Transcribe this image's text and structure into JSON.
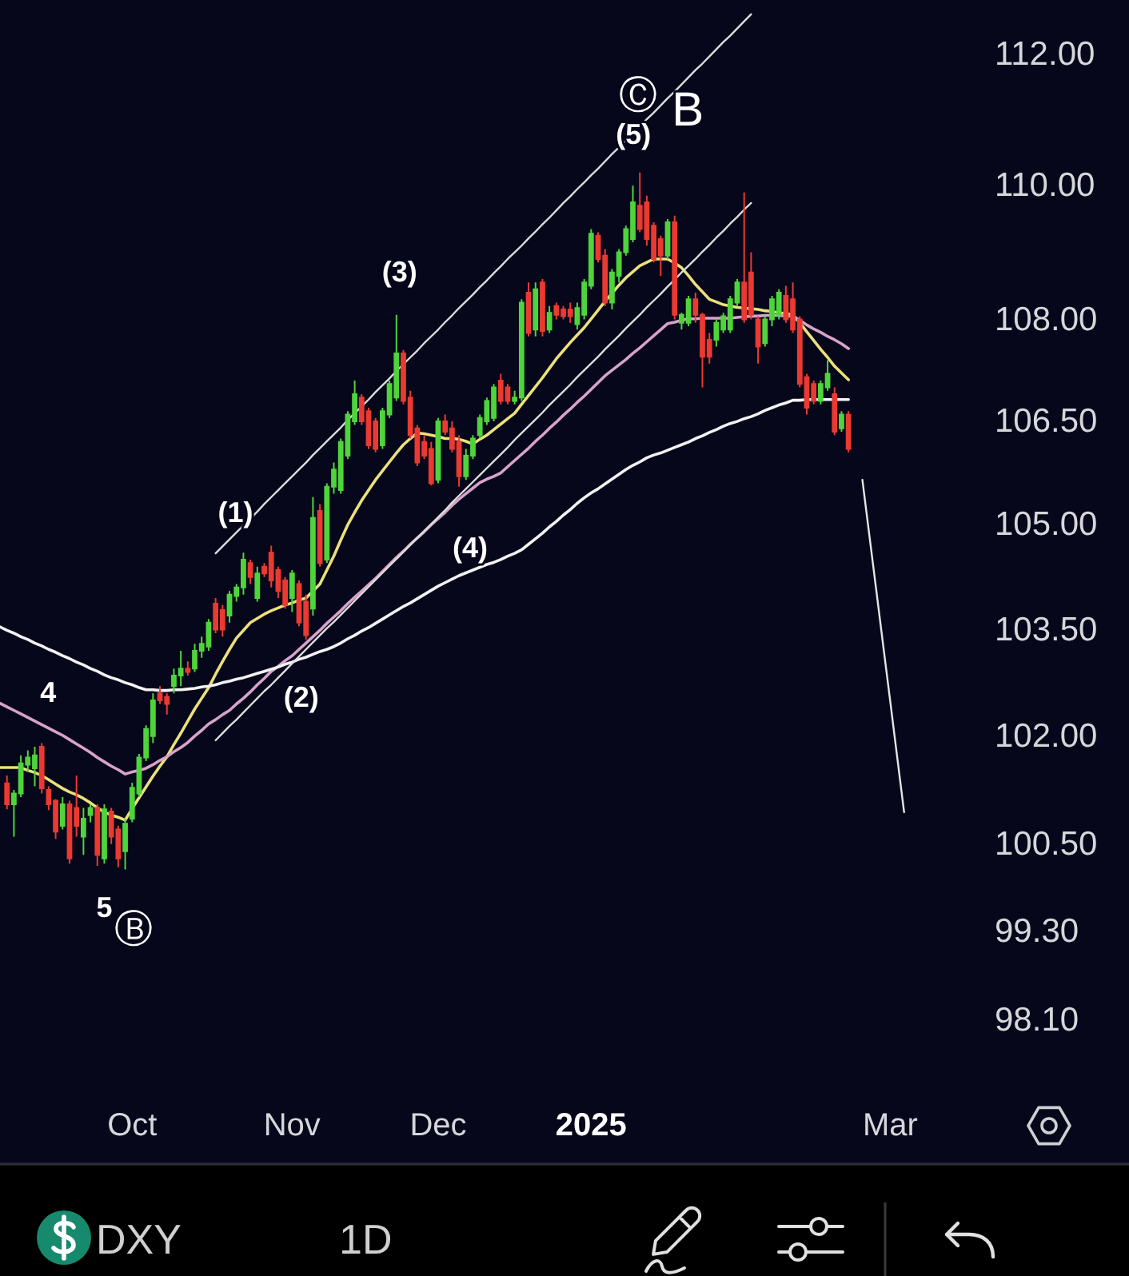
{
  "chart_data": {
    "type": "candlestick",
    "title": "DXY",
    "subtitle": "1D",
    "log": "y",
    "categories": [
      null,
      null,
      null,
      null,
      null,
      null,
      null,
      null,
      null,
      null,
      null,
      null,
      null,
      null,
      null,
      null,
      null,
      null,
      null,
      "Oct",
      null,
      null,
      null,
      null,
      null,
      null,
      null,
      null,
      null,
      null,
      null,
      null,
      null,
      null,
      null,
      null,
      null,
      null,
      null,
      null,
      null,
      null,
      "Nov",
      null,
      null,
      null,
      null,
      null,
      null,
      null,
      null,
      null,
      null,
      null,
      null,
      null,
      null,
      null,
      null,
      null,
      null,
      null,
      null,
      "Dec",
      null,
      null,
      null,
      null,
      null,
      null,
      null,
      null,
      null,
      null,
      null,
      null,
      null,
      null,
      null,
      null,
      null,
      null,
      null,
      null,
      null,
      "2025",
      null,
      null,
      null,
      null,
      null,
      null,
      null,
      null,
      null,
      null,
      null,
      null,
      null,
      null,
      null,
      null,
      null,
      null,
      null,
      null,
      null,
      null,
      null,
      null,
      null,
      null,
      null,
      null,
      null,
      null,
      null,
      null,
      null,
      null,
      null,
      null,
      null,
      null,
      null,
      null,
      null,
      null,
      "Mar",
      null,
      null
    ],
    "ylim": [
      98.1,
      112.84
    ],
    "yticks": [
      {
        "value": 112,
        "label": "112.00"
      },
      {
        "value": 110,
        "label": "110.00"
      },
      {
        "value": 108,
        "label": "108.00"
      },
      {
        "value": 106.5,
        "label": "106.50"
      },
      {
        "value": 105,
        "label": "105.00"
      },
      {
        "value": 103.5,
        "label": "103.50"
      },
      {
        "value": 102,
        "label": "102.00"
      },
      {
        "value": 100.5,
        "label": "100.50"
      },
      {
        "value": 99.3,
        "label": "99.30"
      },
      {
        "value": 98.1,
        "label": "98.10"
      }
    ],
    "ohlc": [
      null,
      [
        101.34,
        101.45,
        100.98,
        101.05
      ],
      [
        101.05,
        101.25,
        100.6,
        101.2
      ],
      [
        101.2,
        101.73,
        101.15,
        101.62
      ],
      [
        101.6,
        101.8,
        101.5,
        101.7
      ],
      [
        101.55,
        101.85,
        101.3,
        101.73
      ],
      [
        101.85,
        101.9,
        101.2,
        101.27
      ],
      [
        101.25,
        101.3,
        100.97,
        101.05
      ],
      [
        101.1,
        101.12,
        100.57,
        100.67
      ],
      [
        100.75,
        101.15,
        100.7,
        101.05
      ],
      [
        101.05,
        101.1,
        100.23,
        100.3
      ],
      [
        101.0,
        101.45,
        100.6,
        100.75
      ],
      [
        100.6,
        101.0,
        100.35,
        100.85
      ],
      [
        100.9,
        101.05,
        100.8,
        101.0
      ],
      [
        101.0,
        101.05,
        100.2,
        100.35
      ],
      [
        100.3,
        101.05,
        100.23,
        100.98
      ],
      [
        100.95,
        101.0,
        100.5,
        100.6
      ],
      [
        100.7,
        100.75,
        100.18,
        100.3
      ],
      [
        100.4,
        100.85,
        100.15,
        100.78
      ],
      [
        100.85,
        101.35,
        100.8,
        101.28
      ],
      [
        101.2,
        101.75,
        101.15,
        101.7
      ],
      [
        101.7,
        102.15,
        101.65,
        102.1
      ],
      [
        102.0,
        102.6,
        101.9,
        102.5
      ],
      [
        102.6,
        102.7,
        102.45,
        102.5
      ],
      [
        102.55,
        102.6,
        102.3,
        102.45
      ],
      [
        102.7,
        102.95,
        102.6,
        102.85
      ],
      [
        102.85,
        103.2,
        102.7,
        102.95
      ],
      [
        102.95,
        103.05,
        102.85,
        102.9
      ],
      [
        102.95,
        103.3,
        102.9,
        103.2
      ],
      [
        103.2,
        103.4,
        103.1,
        103.3
      ],
      [
        103.26,
        103.65,
        103.2,
        103.6
      ],
      [
        103.87,
        103.95,
        103.45,
        103.5
      ],
      [
        103.78,
        103.85,
        103.4,
        103.5
      ],
      [
        103.7,
        104.05,
        103.6,
        104.0
      ],
      [
        103.98,
        104.15,
        103.9,
        104.1
      ],
      [
        104.1,
        104.6,
        104.0,
        104.5
      ],
      [
        104.45,
        104.5,
        104.15,
        104.25
      ],
      [
        103.95,
        104.4,
        103.9,
        104.3
      ],
      [
        104.4,
        104.45,
        104.25,
        104.3
      ],
      [
        104.6,
        104.7,
        104.1,
        104.2
      ],
      [
        104.35,
        104.4,
        103.95,
        104.05
      ],
      [
        104.2,
        104.25,
        103.8,
        103.85
      ],
      [
        103.95,
        104.35,
        103.75,
        104.3
      ],
      [
        104.15,
        104.2,
        103.55,
        103.6
      ],
      [
        103.9,
        104.0,
        103.36,
        103.42
      ],
      [
        103.8,
        105.4,
        103.7,
        105.1
      ],
      [
        105.2,
        105.3,
        104.4,
        104.45
      ],
      [
        104.5,
        105.6,
        104.45,
        105.55
      ],
      [
        105.55,
        105.9,
        105.45,
        105.8
      ],
      [
        105.5,
        106.25,
        105.45,
        106.2
      ],
      [
        106.0,
        106.65,
        105.95,
        106.6
      ],
      [
        106.5,
        107.1,
        106.45,
        106.9
      ],
      [
        106.85,
        106.9,
        106.45,
        106.5
      ],
      [
        106.65,
        106.7,
        106.1,
        106.15
      ],
      [
        106.5,
        106.55,
        106.05,
        106.1
      ],
      [
        106.15,
        106.7,
        106.1,
        106.65
      ],
      [
        106.6,
        107.1,
        106.55,
        107.05
      ],
      [
        106.85,
        108.07,
        106.8,
        107.5
      ],
      [
        107.5,
        107.55,
        106.75,
        106.8
      ],
      [
        106.85,
        106.95,
        106.25,
        106.3
      ],
      [
        106.4,
        106.45,
        105.85,
        105.9
      ],
      [
        106.2,
        106.3,
        105.95,
        106.0
      ],
      [
        106.1,
        106.2,
        105.57,
        105.6
      ],
      [
        105.65,
        106.55,
        105.6,
        106.5
      ],
      [
        106.5,
        106.6,
        106.3,
        106.35
      ],
      [
        106.4,
        106.5,
        106.05,
        106.1
      ],
      [
        106.2,
        106.3,
        105.55,
        105.7
      ],
      [
        105.7,
        106.1,
        105.65,
        106.0
      ],
      [
        106.0,
        106.3,
        105.95,
        106.25
      ],
      [
        106.3,
        106.6,
        106.25,
        106.55
      ],
      [
        106.5,
        106.85,
        106.45,
        106.8
      ],
      [
        106.55,
        107.05,
        106.5,
        107.0
      ],
      [
        107.1,
        107.2,
        106.75,
        106.8
      ],
      [
        107.0,
        107.05,
        106.75,
        106.8
      ],
      [
        106.8,
        106.95,
        106.75,
        106.85
      ],
      [
        106.85,
        108.3,
        106.8,
        108.25
      ],
      [
        108.4,
        108.55,
        107.75,
        107.8
      ],
      [
        107.85,
        108.55,
        107.75,
        108.45
      ],
      [
        108.55,
        108.6,
        107.75,
        107.83
      ],
      [
        107.85,
        108.2,
        107.8,
        108.1
      ],
      [
        108.2,
        108.25,
        108.0,
        108.07
      ],
      [
        108.15,
        108.2,
        108.0,
        108.05
      ],
      [
        108.15,
        108.25,
        107.95,
        108.05
      ],
      [
        107.93,
        108.25,
        107.85,
        108.17
      ],
      [
        108.07,
        108.6,
        108.0,
        108.55
      ],
      [
        108.5,
        109.35,
        108.45,
        109.28
      ],
      [
        109.25,
        109.3,
        108.85,
        108.9
      ],
      [
        108.95,
        109.05,
        108.2,
        108.25
      ],
      [
        108.25,
        108.75,
        108.15,
        108.7
      ],
      [
        108.65,
        109.05,
        108.55,
        109.0
      ],
      [
        109.0,
        109.4,
        108.95,
        109.35
      ],
      [
        109.2,
        110.0,
        109.15,
        109.75
      ],
      [
        109.7,
        110.2,
        109.3,
        109.35
      ],
      [
        109.75,
        109.85,
        109.1,
        109.2
      ],
      [
        109.4,
        109.45,
        108.85,
        108.9
      ],
      [
        109.2,
        109.25,
        108.65,
        108.95
      ],
      [
        108.95,
        109.5,
        108.9,
        109.45
      ],
      [
        109.45,
        109.55,
        108.0,
        108.07
      ],
      [
        107.95,
        108.1,
        107.85,
        108.07
      ],
      [
        107.95,
        108.35,
        107.9,
        108.3
      ],
      [
        108.3,
        108.4,
        107.95,
        108.07
      ],
      [
        108.07,
        108.1,
        107.0,
        107.45
      ],
      [
        107.7,
        107.8,
        107.35,
        107.45
      ],
      [
        107.7,
        108.0,
        107.6,
        107.95
      ],
      [
        107.85,
        108.1,
        107.8,
        108.05
      ],
      [
        107.85,
        108.35,
        107.8,
        108.3
      ],
      [
        108.25,
        108.6,
        108.2,
        108.55
      ],
      [
        108.55,
        109.9,
        107.95,
        108.0
      ],
      [
        108.7,
        109.0,
        108.0,
        108.07
      ],
      [
        108.0,
        108.05,
        107.35,
        107.6
      ],
      [
        107.65,
        108.05,
        107.6,
        108.0
      ],
      [
        108.0,
        108.35,
        107.9,
        108.3
      ],
      [
        108.07,
        108.45,
        108.0,
        108.4
      ],
      [
        108.35,
        108.5,
        107.95,
        108.0
      ],
      [
        108.3,
        108.55,
        107.8,
        107.85
      ],
      [
        108.0,
        108.05,
        107.0,
        107.05
      ],
      [
        107.15,
        107.2,
        106.6,
        106.7
      ],
      [
        107.05,
        107.1,
        106.75,
        106.8
      ],
      [
        106.8,
        107.1,
        106.75,
        107.05
      ],
      [
        107.0,
        107.4,
        106.95,
        107.2
      ],
      [
        106.9,
        107.0,
        106.3,
        106.35
      ],
      [
        106.4,
        106.65,
        106.35,
        106.6
      ],
      [
        106.6,
        106.65,
        106.05,
        106.1
      ],
      null,
      null,
      null,
      null,
      null,
      null,
      null,
      null
    ],
    "colors": [
      null,
      "#ea3a31",
      "#4fd43c",
      "#4fd43c",
      "#4fd43c",
      "#4fd43c",
      "#ea3a31",
      "#ea3a31",
      "#ea3a31",
      "#4fd43c",
      "#ea3a31",
      "#ea3a31",
      "#4fd43c",
      "#4fd43c",
      "#ea3a31",
      "#4fd43c",
      "#ea3a31",
      "#ea3a31",
      "#4fd43c",
      "#4fd43c",
      "#4fd43c",
      "#4fd43c",
      "#4fd43c",
      "#ea3a31",
      "#ea3a31",
      "#4fd43c",
      "#4fd43c",
      "#ea3a31",
      "#4fd43c",
      "#4fd43c",
      "#4fd43c",
      "#ea3a31",
      "#ea3a31",
      "#4fd43c",
      "#4fd43c",
      "#4fd43c",
      "#ea3a31",
      "#4fd43c",
      "#ea3a31",
      "#ea3a31",
      "#ea3a31",
      "#ea3a31",
      "#4fd43c",
      "#ea3a31",
      "#ea3a31",
      "#4fd43c",
      "#ea3a31",
      "#4fd43c",
      "#4fd43c",
      "#4fd43c",
      "#4fd43c",
      "#4fd43c",
      "#ea3a31",
      "#ea3a31",
      "#ea3a31",
      "#4fd43c",
      "#4fd43c",
      "#4fd43c",
      "#ea3a31",
      "#ea3a31",
      "#ea3a31",
      "#ea3a31",
      "#ea3a31",
      "#4fd43c",
      "#ea3a31",
      "#ea3a31",
      "#ea3a31",
      "#4fd43c",
      "#4fd43c",
      "#4fd43c",
      "#4fd43c",
      "#4fd43c",
      "#ea3a31",
      "#ea3a31",
      "#4fd43c",
      "#4fd43c",
      "#ea3a31",
      "#4fd43c",
      "#ea3a31",
      "#4fd43c",
      "#ea3a31",
      "#ea3a31",
      "#ea3a31",
      "#4fd43c",
      "#4fd43c",
      "#4fd43c",
      "#ea3a31",
      "#ea3a31",
      "#4fd43c",
      "#4fd43c",
      "#4fd43c",
      "#4fd43c",
      "#ea3a31",
      "#ea3a31",
      "#ea3a31",
      "#ea3a31",
      "#4fd43c",
      "#ea3a31",
      "#4fd43c",
      "#4fd43c",
      "#ea3a31",
      "#ea3a31",
      "#ea3a31",
      "#4fd43c",
      "#4fd43c",
      "#4fd43c",
      "#4fd43c",
      "#ea3a31",
      "#ea3a31",
      "#ea3a31",
      "#4fd43c",
      "#4fd43c",
      "#4fd43c",
      "#ea3a31",
      "#ea3a31",
      "#ea3a31",
      "#ea3a31",
      "#ea3a31",
      "#4fd43c",
      "#4fd43c",
      "#ea3a31",
      "#4fd43c",
      "#ea3a31",
      null,
      null,
      null,
      null,
      null,
      null,
      null,
      null
    ],
    "series": [
      {
        "type": "line",
        "color": "#ece07a",
        "values": [
          101.56,
          101.56,
          101.56,
          101.56,
          101.52,
          101.49,
          101.45,
          101.39,
          101.33,
          101.27,
          101.22,
          101.18,
          101.13,
          101.07,
          101.0,
          100.94,
          100.9,
          100.87,
          100.83,
          100.99,
          101.14,
          101.29,
          101.44,
          101.58,
          101.71,
          101.88,
          102.04,
          102.21,
          102.38,
          102.53,
          102.68,
          102.87,
          103.05,
          103.22,
          103.38,
          103.49,
          103.6,
          103.66,
          103.72,
          103.77,
          103.81,
          103.85,
          103.88,
          103.92,
          103.95,
          104.05,
          104.15,
          104.35,
          104.55,
          104.78,
          105.0,
          105.18,
          105.35,
          105.5,
          105.65,
          105.78,
          105.91,
          106.04,
          106.16,
          106.25,
          106.33,
          106.32,
          106.3,
          106.28,
          106.25,
          106.25,
          106.24,
          106.21,
          106.17,
          106.24,
          106.3,
          106.38,
          106.46,
          106.54,
          106.62,
          106.75,
          106.88,
          107.01,
          107.14,
          107.28,
          107.42,
          107.54,
          107.66,
          107.77,
          107.88,
          108.01,
          108.14,
          108.27,
          108.39,
          108.51,
          108.62,
          108.71,
          108.8,
          108.85,
          108.9,
          108.9,
          108.9,
          108.84,
          108.77,
          108.65,
          108.52,
          108.41,
          108.3,
          108.26,
          108.22,
          108.2,
          108.18,
          108.17,
          108.16,
          108.15,
          108.13,
          108.12,
          108.1,
          108.09,
          108.07,
          107.95,
          107.82,
          107.69,
          107.56,
          107.44,
          107.31,
          107.21,
          107.11,
          null,
          null,
          null,
          null,
          null,
          null,
          null,
          null
        ]
      },
      {
        "type": "line",
        "color": "#d8a2cb",
        "values": [
          102.46,
          102.41,
          102.36,
          102.31,
          102.26,
          102.21,
          102.16,
          102.11,
          102.06,
          102.01,
          101.95,
          101.89,
          101.83,
          101.77,
          101.7,
          101.64,
          101.58,
          101.53,
          101.47,
          101.5,
          101.52,
          101.55,
          101.6,
          101.66,
          101.71,
          101.78,
          101.84,
          101.91,
          102.0,
          102.08,
          102.17,
          102.23,
          102.3,
          102.36,
          102.45,
          102.53,
          102.62,
          102.72,
          102.81,
          102.91,
          102.98,
          103.06,
          103.13,
          103.22,
          103.31,
          103.4,
          103.49,
          103.59,
          103.68,
          103.77,
          103.87,
          103.96,
          104.05,
          104.14,
          104.23,
          104.33,
          104.43,
          104.53,
          104.62,
          104.72,
          104.81,
          104.9,
          105.0,
          105.09,
          105.18,
          105.28,
          105.37,
          105.45,
          105.53,
          105.61,
          105.66,
          105.7,
          105.75,
          105.84,
          105.93,
          106.02,
          106.11,
          106.21,
          106.3,
          106.4,
          106.49,
          106.59,
          106.68,
          106.78,
          106.87,
          106.97,
          107.07,
          107.17,
          107.25,
          107.33,
          107.41,
          107.5,
          107.58,
          107.67,
          107.76,
          107.85,
          107.94,
          107.96,
          107.99,
          108.01,
          108.01,
          108.02,
          108.02,
          108.02,
          108.02,
          108.02,
          108.03,
          108.04,
          108.05,
          108.05,
          108.06,
          108.06,
          108.06,
          108.05,
          108.05,
          107.99,
          107.92,
          107.86,
          107.81,
          107.75,
          107.7,
          107.64,
          107.57,
          null,
          null,
          null,
          null,
          null,
          null,
          null,
          null
        ]
      },
      {
        "type": "line",
        "color": "#f2f2f2",
        "values": [
          103.54,
          103.49,
          103.45,
          103.4,
          103.36,
          103.31,
          103.27,
          103.22,
          103.18,
          103.13,
          103.09,
          103.04,
          103.0,
          102.95,
          102.91,
          102.86,
          102.82,
          102.79,
          102.75,
          102.72,
          102.68,
          102.65,
          102.65,
          102.64,
          102.64,
          102.65,
          102.65,
          102.66,
          102.67,
          102.69,
          102.7,
          102.72,
          102.75,
          102.77,
          102.8,
          102.82,
          102.85,
          102.88,
          102.91,
          102.94,
          102.97,
          103.01,
          103.04,
          103.08,
          103.11,
          103.15,
          103.19,
          103.22,
          103.26,
          103.31,
          103.37,
          103.42,
          103.48,
          103.53,
          103.59,
          103.65,
          103.71,
          103.77,
          103.83,
          103.88,
          103.94,
          104.0,
          104.06,
          104.12,
          104.17,
          104.22,
          104.27,
          104.31,
          104.35,
          104.39,
          104.43,
          104.46,
          104.5,
          104.55,
          104.59,
          104.64,
          104.72,
          104.8,
          104.88,
          104.97,
          105.05,
          105.14,
          105.22,
          105.31,
          105.39,
          105.46,
          105.52,
          105.59,
          105.66,
          105.73,
          105.8,
          105.86,
          105.91,
          105.97,
          106.01,
          106.04,
          106.08,
          106.12,
          106.16,
          106.2,
          106.25,
          106.29,
          106.34,
          106.38,
          106.43,
          106.47,
          106.5,
          106.54,
          106.57,
          106.61,
          106.66,
          106.7,
          106.74,
          106.77,
          106.81,
          106.81,
          106.82,
          106.82,
          106.82,
          106.82,
          106.82,
          106.82,
          106.82,
          null,
          null,
          null,
          null,
          null,
          null,
          null,
          null
        ]
      },
      {
        "type": "line",
        "color": "#dcdcdc",
        "values": [
          null,
          null,
          null,
          null,
          null,
          null,
          null,
          null,
          null,
          null,
          null,
          null,
          null,
          null,
          null,
          null,
          null,
          null,
          null,
          null,
          null,
          null,
          null,
          null,
          null,
          null,
          null,
          null,
          null,
          null,
          null,
          104.59,
          104.69,
          104.79,
          104.89,
          104.99,
          105.09,
          105.19,
          105.3,
          105.4,
          105.5,
          105.6,
          105.7,
          105.8,
          105.9,
          106.01,
          106.11,
          106.21,
          106.31,
          106.41,
          106.52,
          106.62,
          106.72,
          106.82,
          106.93,
          107.03,
          107.13,
          107.24,
          107.34,
          107.44,
          107.54,
          107.65,
          107.75,
          107.85,
          107.96,
          108.06,
          108.17,
          108.27,
          108.37,
          108.48,
          108.58,
          108.69,
          108.79,
          108.9,
          109.0,
          109.1,
          109.21,
          109.31,
          109.42,
          109.52,
          109.63,
          109.74,
          109.84,
          109.95,
          110.05,
          110.16,
          110.26,
          110.37,
          110.48,
          110.58,
          110.69,
          110.79,
          110.9,
          111.01,
          111.11,
          111.22,
          111.33,
          111.43,
          111.54,
          111.65,
          111.76,
          111.86,
          111.97,
          112.08,
          112.19,
          112.29,
          112.4,
          112.51,
          112.62,
          null,
          null,
          null,
          null,
          null,
          null,
          null,
          null,
          null,
          null,
          null,
          null,
          null,
          null,
          null,
          null,
          null,
          null,
          null,
          null,
          null,
          null
        ]
      },
      {
        "type": "line",
        "color": "#dcdcdc",
        "values": [
          null,
          null,
          null,
          null,
          null,
          null,
          null,
          null,
          null,
          null,
          null,
          null,
          null,
          null,
          null,
          null,
          null,
          null,
          null,
          null,
          null,
          null,
          null,
          null,
          null,
          null,
          null,
          null,
          null,
          null,
          null,
          101.94,
          102.04,
          102.14,
          102.23,
          102.33,
          102.43,
          102.53,
          102.63,
          102.72,
          102.82,
          102.92,
          103.02,
          103.12,
          103.22,
          103.32,
          103.42,
          103.52,
          103.61,
          103.71,
          103.81,
          103.91,
          104.01,
          104.11,
          104.21,
          104.31,
          104.41,
          104.51,
          104.61,
          104.71,
          104.81,
          104.91,
          105.01,
          105.11,
          105.21,
          105.32,
          105.42,
          105.52,
          105.62,
          105.72,
          105.82,
          105.92,
          106.02,
          106.12,
          106.23,
          106.33,
          106.43,
          106.53,
          106.63,
          106.74,
          106.84,
          106.94,
          107.04,
          107.15,
          107.25,
          107.35,
          107.45,
          107.56,
          107.66,
          107.76,
          107.87,
          107.97,
          108.07,
          108.18,
          108.28,
          108.38,
          108.49,
          108.59,
          108.7,
          108.8,
          108.9,
          109.01,
          109.11,
          109.22,
          109.32,
          109.43,
          109.53,
          109.64,
          109.74,
          null,
          null,
          null,
          null,
          null,
          null,
          null,
          null,
          null,
          null,
          null,
          null,
          null,
          null,
          null,
          null,
          null,
          null,
          null,
          null,
          null,
          null
        ]
      },
      {
        "type": "line",
        "color": "#e6e6e6",
        "values": [
          null,
          null,
          null,
          null,
          null,
          null,
          null,
          null,
          null,
          null,
          null,
          null,
          null,
          null,
          null,
          null,
          null,
          null,
          null,
          null,
          null,
          null,
          null,
          null,
          null,
          null,
          null,
          null,
          null,
          null,
          null,
          null,
          null,
          null,
          null,
          null,
          null,
          null,
          null,
          null,
          null,
          null,
          null,
          null,
          null,
          null,
          null,
          null,
          null,
          null,
          null,
          null,
          null,
          null,
          null,
          null,
          null,
          null,
          null,
          null,
          null,
          null,
          null,
          null,
          null,
          null,
          null,
          null,
          null,
          null,
          null,
          null,
          null,
          null,
          null,
          null,
          null,
          null,
          null,
          null,
          null,
          null,
          null,
          null,
          null,
          null,
          null,
          null,
          null,
          null,
          null,
          null,
          null,
          null,
          null,
          null,
          null,
          null,
          null,
          null,
          null,
          null,
          null,
          null,
          null,
          null,
          null,
          null,
          null,
          null,
          null,
          null,
          null,
          null,
          null,
          null,
          null,
          null,
          null,
          null,
          null,
          null,
          null,
          null,
          105.65,
          104.85,
          104.06,
          103.27,
          102.49,
          101.71,
          100.94
        ]
      }
    ],
    "annotations": [
      {
        "text": "4",
        "y": 101.9
      },
      {
        "text": "5",
        "y": 100.15
      },
      {
        "text": "Ⓑ",
        "y": 100.15
      },
      {
        "text": "(1)",
        "y": 104.6
      },
      {
        "text": "(2)",
        "y": 103.36
      },
      {
        "text": "(3)",
        "y": 108.07
      },
      {
        "text": "(4)",
        "y": 105.55
      },
      {
        "text": "(5)",
        "y": 110.2
      },
      {
        "text": "Ⓒ",
        "y": 110.2
      },
      "B"
    ]
  }
}
